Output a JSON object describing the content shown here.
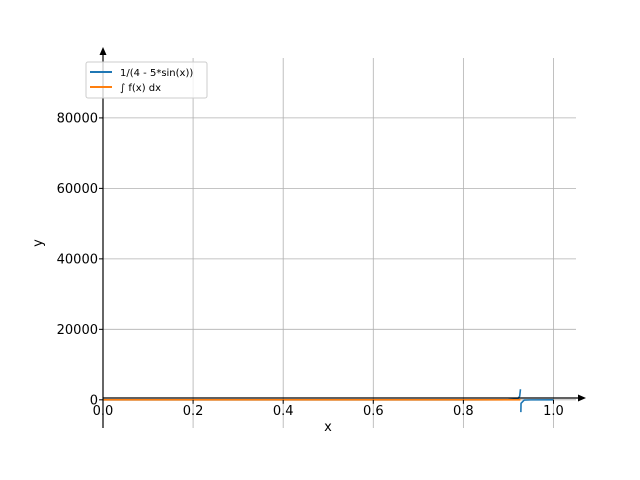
{
  "chart_data": {
    "type": "line",
    "xlabel": "x",
    "ylabel": "y",
    "xlim": [
      0.0,
      1.05
    ],
    "ylim": [
      -8000,
      97000
    ],
    "xticks": [
      0.0,
      0.2,
      0.4,
      0.6,
      0.8,
      1.0
    ],
    "xtick_labels": [
      "0.0",
      "0.2",
      "0.4",
      "0.6",
      "0.8",
      "1.0"
    ],
    "yticks": [
      0,
      20000,
      40000,
      60000,
      80000
    ],
    "ytick_labels": [
      "0",
      "20000",
      "40000",
      "60000",
      "80000"
    ],
    "grid": true,
    "legend_position": "top-left",
    "series": [
      {
        "name": "1/(4 - 5*sin(x))",
        "color": "#1f77b4",
        "segments": [
          {
            "x": [
              0.0,
              0.2,
              0.4,
              0.6,
              0.8,
              0.9,
              0.92,
              0.925,
              0.9267
            ],
            "y": [
              0.25,
              0.33,
              0.49,
              1.3,
              -2.2,
              45,
              200,
              1000,
              3000
            ]
          },
          {
            "x": [
              0.9276,
              0.928,
              0.935,
              0.95,
              1.0
            ],
            "y": [
              -3500,
              -1000,
              -70,
              -20,
              -5
            ]
          }
        ]
      },
      {
        "name": "∫ f(x) dx",
        "color": "#ff7f0e",
        "segments": [
          {
            "x": [
              0.0,
              0.2,
              0.4,
              0.6,
              0.8,
              0.9,
              0.9267
            ],
            "y": [
              0.0,
              0.06,
              0.13,
              0.26,
              0.4,
              0.5,
              0.7
            ]
          }
        ]
      }
    ]
  }
}
